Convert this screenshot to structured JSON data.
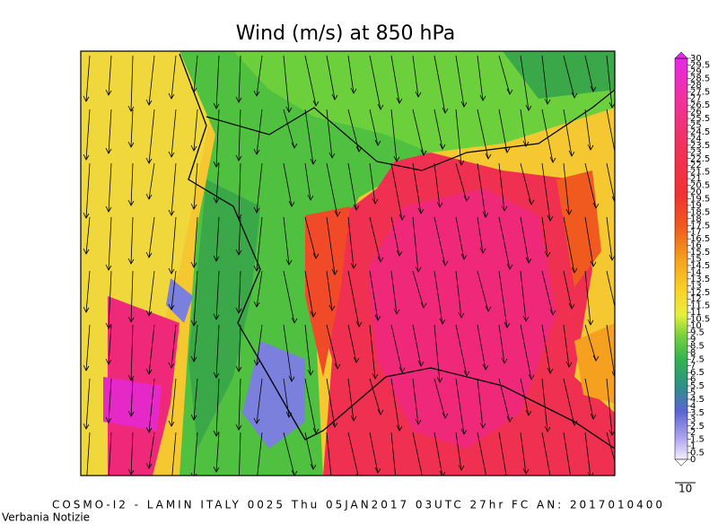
{
  "title": "Wind (m/s) at 850 hPa",
  "footer": "COSMO-I2 - LAMIN ITALY 0025 Thu 05JAN2017 03UTC 27hr FC AN: 2017010400",
  "watermark": "Verbania Notizie",
  "vector_scale": "10",
  "colorbar": {
    "ticks": [
      0,
      0.5,
      1,
      1.5,
      2,
      2.5,
      3,
      3.5,
      4,
      4.5,
      5,
      5.5,
      6,
      6.5,
      7,
      7.5,
      8,
      8.5,
      9,
      9.5,
      10,
      10.5,
      11,
      11.5,
      12,
      12.5,
      13,
      13.5,
      14,
      14.5,
      15,
      15.5,
      16,
      16.5,
      17,
      17.5,
      18,
      18.5,
      19,
      19.5,
      20,
      20.5,
      21,
      21.5,
      22,
      22.5,
      23,
      23.5,
      24,
      24.5,
      25,
      25.5,
      26,
      26.5,
      27,
      27.5,
      28,
      28.5,
      29,
      29.5,
      30
    ]
  }
}
